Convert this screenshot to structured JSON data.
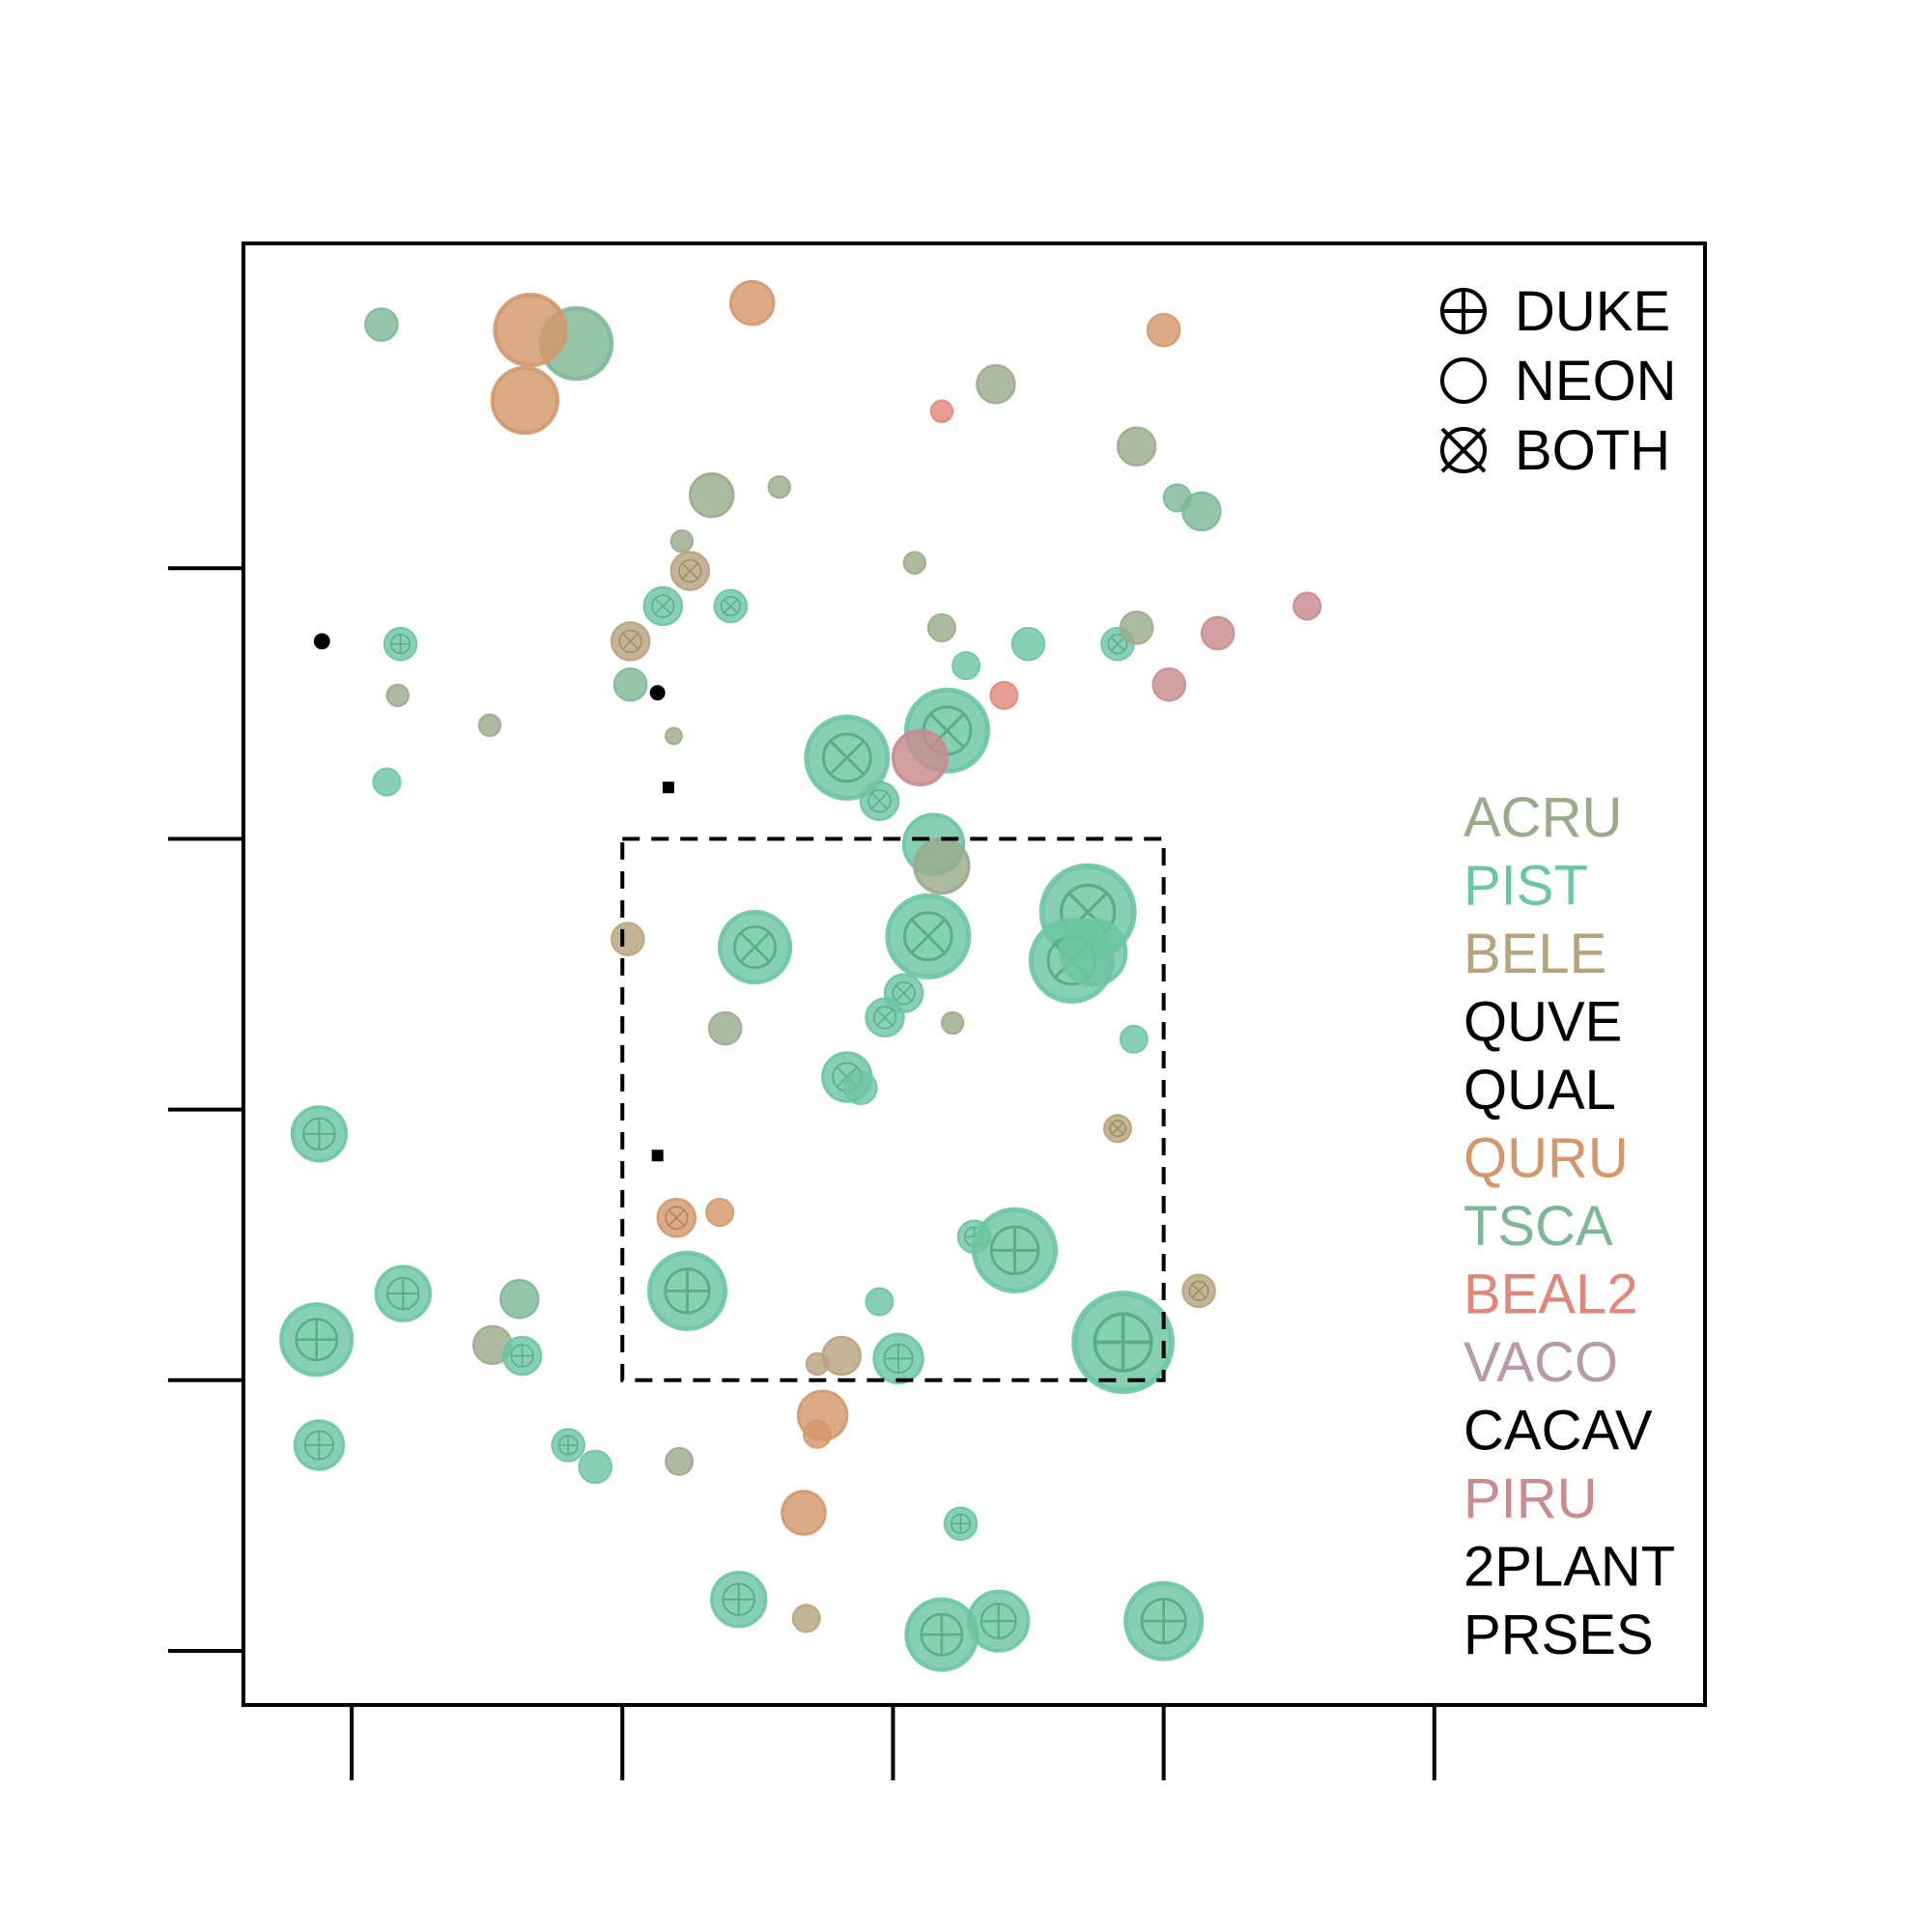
{
  "chart_data": {
    "type": "scatter",
    "title": "",
    "xlabel": "",
    "ylabel": "",
    "xlim": [
      -0.4,
      5.0
    ],
    "ylim": [
      -0.2,
      5.2
    ],
    "x_ticks": [
      0,
      1,
      2,
      3,
      4
    ],
    "y_ticks": [
      0,
      1,
      2,
      3,
      4
    ],
    "tick_labels_shown": false,
    "grid": false,
    "highlight_box": {
      "x": [
        1,
        3
      ],
      "y": [
        1,
        3
      ],
      "style": "dashed"
    },
    "legend_placement": "right",
    "shape_legend": [
      {
        "label": "DUKE",
        "marker": "plus"
      },
      {
        "label": "NEON",
        "marker": "none"
      },
      {
        "label": "BOTH",
        "marker": "cross"
      }
    ],
    "species": [
      {
        "name": "ACRU",
        "color": "#9aab8a"
      },
      {
        "name": "PIST",
        "color": "#6cc5a5"
      },
      {
        "name": "BELE",
        "color": "#b8a27e"
      },
      {
        "name": "QUVE",
        "color": "#000000"
      },
      {
        "name": "QUAL",
        "color": "#000000"
      },
      {
        "name": "QURU",
        "color": "#d4976a"
      },
      {
        "name": "TSCA",
        "color": "#7cb896"
      },
      {
        "name": "BEAL2",
        "color": "#e0877a"
      },
      {
        "name": "VACO",
        "color": "#b899a6"
      },
      {
        "name": "CACAV",
        "color": "#000000"
      },
      {
        "name": "PIRU",
        "color": "#c98b8e"
      },
      {
        "name": "2PLANT",
        "color": "#000000"
      },
      {
        "name": "PRSES",
        "color": "#000000"
      }
    ],
    "points": [
      {
        "x": 0.11,
        "y": 4.9,
        "size": 0.06,
        "species": "TSCA",
        "source": "NEON"
      },
      {
        "x": 0.83,
        "y": 4.83,
        "size": 0.13,
        "species": "TSCA",
        "source": "NEON"
      },
      {
        "x": 0.66,
        "y": 4.88,
        "size": 0.13,
        "species": "QURU",
        "source": "NEON"
      },
      {
        "x": 0.64,
        "y": 4.62,
        "size": 0.12,
        "species": "QURU",
        "source": "NEON"
      },
      {
        "x": 1.48,
        "y": 4.98,
        "size": 0.08,
        "species": "QURU",
        "source": "NEON"
      },
      {
        "x": 3.0,
        "y": 4.88,
        "size": 0.06,
        "species": "QURU",
        "source": "NEON"
      },
      {
        "x": 2.38,
        "y": 4.68,
        "size": 0.07,
        "species": "ACRU",
        "source": "NEON"
      },
      {
        "x": 2.18,
        "y": 4.58,
        "size": 0.04,
        "species": "BEAL2",
        "source": "NEON"
      },
      {
        "x": 2.9,
        "y": 4.45,
        "size": 0.07,
        "species": "ACRU",
        "source": "NEON"
      },
      {
        "x": 1.33,
        "y": 4.27,
        "size": 0.08,
        "species": "ACRU",
        "source": "NEON"
      },
      {
        "x": 1.58,
        "y": 4.3,
        "size": 0.04,
        "species": "ACRU",
        "source": "NEON"
      },
      {
        "x": 3.05,
        "y": 4.26,
        "size": 0.05,
        "species": "TSCA",
        "source": "NEON"
      },
      {
        "x": 3.14,
        "y": 4.21,
        "size": 0.07,
        "species": "TSCA",
        "source": "NEON"
      },
      {
        "x": 1.22,
        "y": 4.1,
        "size": 0.04,
        "species": "ACRU",
        "source": "NEON"
      },
      {
        "x": 1.25,
        "y": 3.99,
        "size": 0.07,
        "species": "BELE",
        "source": "BOTH"
      },
      {
        "x": 2.08,
        "y": 4.02,
        "size": 0.04,
        "species": "ACRU",
        "source": "NEON"
      },
      {
        "x": 1.15,
        "y": 3.86,
        "size": 0.07,
        "species": "PIST",
        "source": "BOTH"
      },
      {
        "x": 1.4,
        "y": 3.86,
        "size": 0.06,
        "species": "PIST",
        "source": "BOTH"
      },
      {
        "x": 0.18,
        "y": 3.72,
        "size": 0.06,
        "species": "PIST",
        "source": "DUKE"
      },
      {
        "x": -0.11,
        "y": 3.73,
        "size": 0.03,
        "species": "QUVE",
        "source": "NEON"
      },
      {
        "x": 1.03,
        "y": 3.73,
        "size": 0.07,
        "species": "BELE",
        "source": "BOTH"
      },
      {
        "x": 2.18,
        "y": 3.78,
        "size": 0.05,
        "species": "ACRU",
        "source": "NEON"
      },
      {
        "x": 2.27,
        "y": 3.64,
        "size": 0.05,
        "species": "PIST",
        "source": "NEON"
      },
      {
        "x": 2.5,
        "y": 3.72,
        "size": 0.06,
        "species": "PIST",
        "source": "NEON"
      },
      {
        "x": 2.83,
        "y": 3.72,
        "size": 0.06,
        "species": "PIST",
        "source": "BOTH"
      },
      {
        "x": 2.9,
        "y": 3.78,
        "size": 0.06,
        "species": "ACRU",
        "source": "NEON"
      },
      {
        "x": 3.2,
        "y": 3.76,
        "size": 0.06,
        "species": "PIRU",
        "source": "NEON"
      },
      {
        "x": 3.53,
        "y": 3.86,
        "size": 0.05,
        "species": "PIRU",
        "source": "NEON"
      },
      {
        "x": 3.02,
        "y": 3.57,
        "size": 0.06,
        "species": "PIRU",
        "source": "NEON"
      },
      {
        "x": 1.03,
        "y": 3.57,
        "size": 0.06,
        "species": "TSCA",
        "source": "NEON"
      },
      {
        "x": 0.17,
        "y": 3.53,
        "size": 0.04,
        "species": "ACRU",
        "source": "NEON"
      },
      {
        "x": 0.51,
        "y": 3.42,
        "size": 0.04,
        "species": "ACRU",
        "source": "NEON"
      },
      {
        "x": 1.19,
        "y": 3.38,
        "size": 0.03,
        "species": "ACRU",
        "source": "NEON"
      },
      {
        "x": 1.13,
        "y": 3.54,
        "size": 0.02,
        "species": "CACAV",
        "source": "NEON"
      },
      {
        "x": 2.41,
        "y": 3.53,
        "size": 0.05,
        "species": "BEAL2",
        "source": "NEON"
      },
      {
        "x": 1.83,
        "y": 3.3,
        "size": 0.15,
        "species": "PIST",
        "source": "BOTH"
      },
      {
        "x": 2.2,
        "y": 3.4,
        "size": 0.15,
        "species": "PIST",
        "source": "BOTH"
      },
      {
        "x": 2.1,
        "y": 3.3,
        "size": 0.1,
        "species": "PIRU",
        "source": "NEON"
      },
      {
        "x": 1.95,
        "y": 3.14,
        "size": 0.07,
        "species": "PIST",
        "source": "BOTH"
      },
      {
        "x": 0.13,
        "y": 3.21,
        "size": 0.05,
        "species": "PIST",
        "source": "NEON"
      },
      {
        "x": 1.17,
        "y": 3.19,
        "size": 0.03,
        "species": "CACAV",
        "source": "BOTH"
      },
      {
        "x": 2.15,
        "y": 2.98,
        "size": 0.11,
        "species": "PIST",
        "source": "NEON"
      },
      {
        "x": 2.18,
        "y": 2.9,
        "size": 0.1,
        "species": "ACRU",
        "source": "NEON"
      },
      {
        "x": 1.02,
        "y": 2.63,
        "size": 0.06,
        "species": "BELE",
        "source": "NEON"
      },
      {
        "x": 1.49,
        "y": 2.6,
        "size": 0.13,
        "species": "PIST",
        "source": "BOTH"
      },
      {
        "x": 2.13,
        "y": 2.64,
        "size": 0.15,
        "species": "PIST",
        "source": "BOTH"
      },
      {
        "x": 2.72,
        "y": 2.73,
        "size": 0.17,
        "species": "PIST",
        "source": "BOTH"
      },
      {
        "x": 2.66,
        "y": 2.55,
        "size": 0.15,
        "species": "PIST",
        "source": "BOTH"
      },
      {
        "x": 2.74,
        "y": 2.58,
        "size": 0.12,
        "species": "PIST",
        "source": "NEON"
      },
      {
        "x": 2.04,
        "y": 2.43,
        "size": 0.07,
        "species": "PIST",
        "source": "BOTH"
      },
      {
        "x": 1.97,
        "y": 2.34,
        "size": 0.07,
        "species": "PIST",
        "source": "BOTH"
      },
      {
        "x": 2.22,
        "y": 2.32,
        "size": 0.04,
        "species": "ACRU",
        "source": "NEON"
      },
      {
        "x": 1.38,
        "y": 2.3,
        "size": 0.06,
        "species": "ACRU",
        "source": "NEON"
      },
      {
        "x": 2.89,
        "y": 2.26,
        "size": 0.05,
        "species": "PIST",
        "source": "NEON"
      },
      {
        "x": 1.83,
        "y": 2.12,
        "size": 0.09,
        "species": "PIST",
        "source": "BOTH"
      },
      {
        "x": 1.88,
        "y": 2.08,
        "size": 0.06,
        "species": "PIST",
        "source": "NEON"
      },
      {
        "x": 2.83,
        "y": 1.93,
        "size": 0.05,
        "species": "BELE",
        "source": "BOTH"
      },
      {
        "x": 1.13,
        "y": 1.83,
        "size": 0.02,
        "species": "2PLANT",
        "source": "BOTH"
      },
      {
        "x": 1.2,
        "y": 1.6,
        "size": 0.07,
        "species": "QURU",
        "source": "BOTH"
      },
      {
        "x": 1.36,
        "y": 1.62,
        "size": 0.05,
        "species": "QURU",
        "source": "NEON"
      },
      {
        "x": -0.12,
        "y": 1.91,
        "size": 0.1,
        "species": "PIST",
        "source": "DUKE"
      },
      {
        "x": 2.3,
        "y": 1.53,
        "size": 0.06,
        "species": "PIST",
        "source": "DUKE"
      },
      {
        "x": 2.45,
        "y": 1.48,
        "size": 0.15,
        "species": "PIST",
        "source": "DUKE"
      },
      {
        "x": 0.19,
        "y": 1.32,
        "size": 0.1,
        "species": "PIST",
        "source": "DUKE"
      },
      {
        "x": 0.62,
        "y": 1.3,
        "size": 0.07,
        "species": "TSCA",
        "source": "NEON"
      },
      {
        "x": 1.24,
        "y": 1.33,
        "size": 0.14,
        "species": "PIST",
        "source": "DUKE"
      },
      {
        "x": 1.95,
        "y": 1.29,
        "size": 0.05,
        "species": "PIST",
        "source": "NEON"
      },
      {
        "x": 2.85,
        "y": 1.14,
        "size": 0.18,
        "species": "PIST",
        "source": "DUKE"
      },
      {
        "x": 3.13,
        "y": 1.33,
        "size": 0.06,
        "species": "BELE",
        "source": "BOTH"
      },
      {
        "x": -0.13,
        "y": 1.15,
        "size": 0.13,
        "species": "PIST",
        "source": "DUKE"
      },
      {
        "x": 0.52,
        "y": 1.13,
        "size": 0.07,
        "species": "ACRU",
        "source": "NEON"
      },
      {
        "x": 0.63,
        "y": 1.09,
        "size": 0.07,
        "species": "PIST",
        "source": "DUKE"
      },
      {
        "x": 1.81,
        "y": 1.09,
        "size": 0.07,
        "species": "BELE",
        "source": "NEON"
      },
      {
        "x": 1.72,
        "y": 1.06,
        "size": 0.04,
        "species": "BELE",
        "source": "NEON"
      },
      {
        "x": 2.02,
        "y": 1.08,
        "size": 0.09,
        "species": "PIST",
        "source": "DUKE"
      },
      {
        "x": -0.12,
        "y": 0.76,
        "size": 0.09,
        "species": "PIST",
        "source": "DUKE"
      },
      {
        "x": 0.8,
        "y": 0.76,
        "size": 0.06,
        "species": "PIST",
        "source": "DUKE"
      },
      {
        "x": 0.9,
        "y": 0.68,
        "size": 0.06,
        "species": "PIST",
        "source": "NEON"
      },
      {
        "x": 1.21,
        "y": 0.7,
        "size": 0.05,
        "species": "ACRU",
        "source": "NEON"
      },
      {
        "x": 1.74,
        "y": 0.87,
        "size": 0.09,
        "species": "QURU",
        "source": "NEON"
      },
      {
        "x": 1.72,
        "y": 0.8,
        "size": 0.05,
        "species": "QURU",
        "source": "NEON"
      },
      {
        "x": 1.67,
        "y": 0.51,
        "size": 0.08,
        "species": "QURU",
        "source": "NEON"
      },
      {
        "x": 2.25,
        "y": 0.47,
        "size": 0.06,
        "species": "PIST",
        "source": "DUKE"
      },
      {
        "x": 1.43,
        "y": 0.19,
        "size": 0.1,
        "species": "PIST",
        "source": "DUKE"
      },
      {
        "x": 1.68,
        "y": 0.12,
        "size": 0.05,
        "species": "BELE",
        "source": "NEON"
      },
      {
        "x": 2.18,
        "y": 0.06,
        "size": 0.13,
        "species": "PIST",
        "source": "DUKE"
      },
      {
        "x": 2.39,
        "y": 0.11,
        "size": 0.11,
        "species": "PIST",
        "source": "DUKE"
      },
      {
        "x": 3.0,
        "y": 0.11,
        "size": 0.14,
        "species": "PIST",
        "source": "DUKE"
      }
    ]
  }
}
